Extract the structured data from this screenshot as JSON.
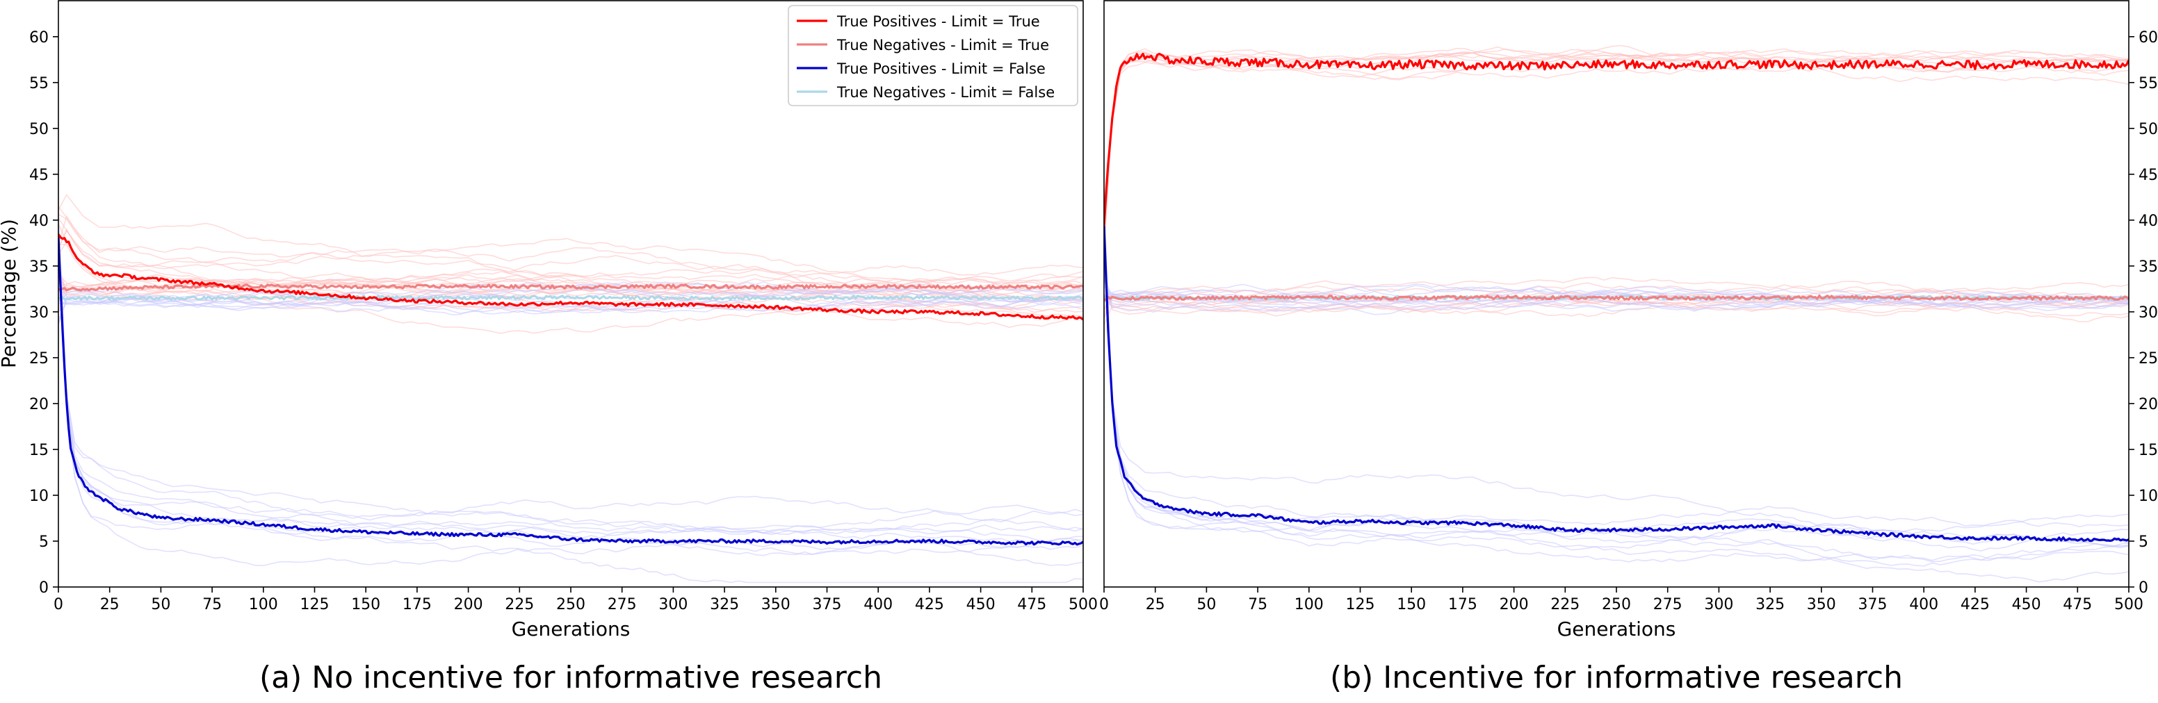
{
  "captions": {
    "a": "(a) No incentive for informative research",
    "b": "(b) Incentive for informative research"
  },
  "colors": {
    "tp_true": "#ff0000",
    "tn_true": "#f08080",
    "tp_false": "#0000cd",
    "tn_false": "#add8e6",
    "run_red": "#ffc0c0",
    "run_blue": "#c8c8ff"
  },
  "chart_data": [
    {
      "type": "line",
      "caption": "(a) No incentive for informative research",
      "xlabel": "Generations",
      "ylabel": "Percentage (%)",
      "xlim": [
        0,
        500
      ],
      "ylim": [
        0,
        64
      ],
      "xticks": [
        0,
        25,
        50,
        75,
        100,
        125,
        150,
        175,
        200,
        225,
        250,
        275,
        300,
        325,
        350,
        375,
        400,
        425,
        450,
        475,
        500
      ],
      "yticks": [
        0,
        5,
        10,
        15,
        20,
        25,
        30,
        35,
        40,
        45,
        50,
        55,
        60
      ],
      "yaxis_side": "left",
      "grid": false,
      "legend": "top-right",
      "series": [
        {
          "name": "True Positives - Limit = True",
          "color": "#ff0000",
          "x": [
            0,
            5,
            10,
            20,
            30,
            40,
            50,
            75,
            100,
            125,
            150,
            175,
            200,
            225,
            250,
            275,
            300,
            325,
            350,
            375,
            400,
            425,
            450,
            475,
            500
          ],
          "y": [
            38.5,
            37.5,
            35.5,
            34,
            34,
            33.7,
            33.5,
            33,
            32.3,
            32,
            31.5,
            31.2,
            31,
            30.8,
            31,
            30.8,
            30.8,
            30.7,
            30.5,
            30.2,
            30,
            30,
            29.8,
            29.5,
            29.3
          ]
        },
        {
          "name": "True Negatives - Limit = True",
          "color": "#f08080",
          "x": [
            0,
            10,
            50,
            100,
            150,
            200,
            250,
            300,
            350,
            400,
            450,
            500
          ],
          "y": [
            32.5,
            32.5,
            32.7,
            32.8,
            32.7,
            32.8,
            32.7,
            32.8,
            32.7,
            32.8,
            32.7,
            32.7
          ]
        },
        {
          "name": "True Positives - Limit = False",
          "color": "#0000cd",
          "x": [
            0,
            2,
            4,
            6,
            10,
            15,
            20,
            30,
            40,
            50,
            75,
            100,
            125,
            150,
            175,
            200,
            225,
            250,
            275,
            300,
            325,
            350,
            375,
            400,
            425,
            450,
            475,
            500
          ],
          "y": [
            38,
            28,
            20,
            15,
            12,
            10.5,
            9.8,
            8.5,
            8,
            7.5,
            7.3,
            6.8,
            6.3,
            6,
            5.8,
            5.7,
            5.7,
            5.2,
            5,
            5,
            5,
            5,
            4.9,
            5,
            5,
            4.9,
            4.8,
            4.8
          ]
        },
        {
          "name": "True Negatives - Limit = False",
          "color": "#add8e6",
          "x": [
            0,
            50,
            100,
            150,
            200,
            250,
            300,
            350,
            400,
            450,
            500
          ],
          "y": [
            31.5,
            31.5,
            31.5,
            31.6,
            31.5,
            31.6,
            31.5,
            31.5,
            31.6,
            31.5,
            31.5
          ]
        }
      ]
    },
    {
      "type": "line",
      "caption": "(b) Incentive for informative research",
      "xlabel": "Generations",
      "ylabel": "",
      "xlim": [
        0,
        500
      ],
      "ylim": [
        0,
        64
      ],
      "xticks": [
        0,
        25,
        50,
        75,
        100,
        125,
        150,
        175,
        200,
        225,
        250,
        275,
        300,
        325,
        350,
        375,
        400,
        425,
        450,
        475,
        500
      ],
      "yticks": [
        0,
        5,
        10,
        15,
        20,
        25,
        30,
        35,
        40,
        45,
        50,
        55,
        60
      ],
      "yaxis_side": "right",
      "grid": false,
      "legend": "none",
      "series": [
        {
          "name": "True Positives - Limit = True",
          "color": "#ff0000",
          "x": [
            0,
            2,
            4,
            6,
            8,
            10,
            15,
            20,
            25,
            30,
            50,
            75,
            100,
            125,
            150,
            175,
            200,
            225,
            250,
            275,
            300,
            325,
            350,
            375,
            400,
            425,
            450,
            475,
            500
          ],
          "y": [
            39.5,
            46,
            51,
            54.5,
            56.5,
            57.3,
            57.8,
            58,
            57.8,
            57.5,
            57.3,
            57.2,
            57,
            56.8,
            57,
            56.9,
            56.8,
            56.9,
            57,
            56.9,
            57,
            57,
            56.9,
            57,
            57,
            56.9,
            57,
            57,
            57
          ]
        },
        {
          "name": "True Negatives - Limit = True",
          "color": "#f08080",
          "x": [
            0,
            50,
            100,
            150,
            200,
            250,
            300,
            350,
            400,
            450,
            500
          ],
          "y": [
            31.5,
            31.5,
            31.6,
            31.5,
            31.6,
            31.5,
            31.5,
            31.6,
            31.5,
            31.5,
            31.5
          ]
        },
        {
          "name": "True Positives - Limit = False",
          "color": "#0000cd",
          "x": [
            0,
            2,
            4,
            6,
            10,
            15,
            20,
            30,
            40,
            50,
            75,
            100,
            125,
            150,
            175,
            200,
            225,
            250,
            275,
            300,
            325,
            350,
            375,
            400,
            425,
            450,
            475,
            500
          ],
          "y": [
            39.5,
            28,
            20,
            15.5,
            12,
            10.5,
            9.5,
            8.8,
            8.3,
            8,
            7.8,
            7,
            7.2,
            7,
            7,
            6.7,
            6.2,
            6.2,
            6.3,
            6.5,
            6.7,
            6.2,
            5.8,
            5.5,
            5.3,
            5.3,
            5.2,
            5.1
          ]
        },
        {
          "name": "True Negatives - Limit = False",
          "color": "#add8e6",
          "x": [
            0,
            50,
            100,
            150,
            200,
            250,
            300,
            350,
            400,
            450,
            500
          ],
          "y": [
            31.5,
            31.5,
            31.5,
            31.6,
            31.5,
            31.6,
            31.5,
            31.5,
            31.6,
            31.5,
            31.5
          ]
        }
      ]
    }
  ]
}
